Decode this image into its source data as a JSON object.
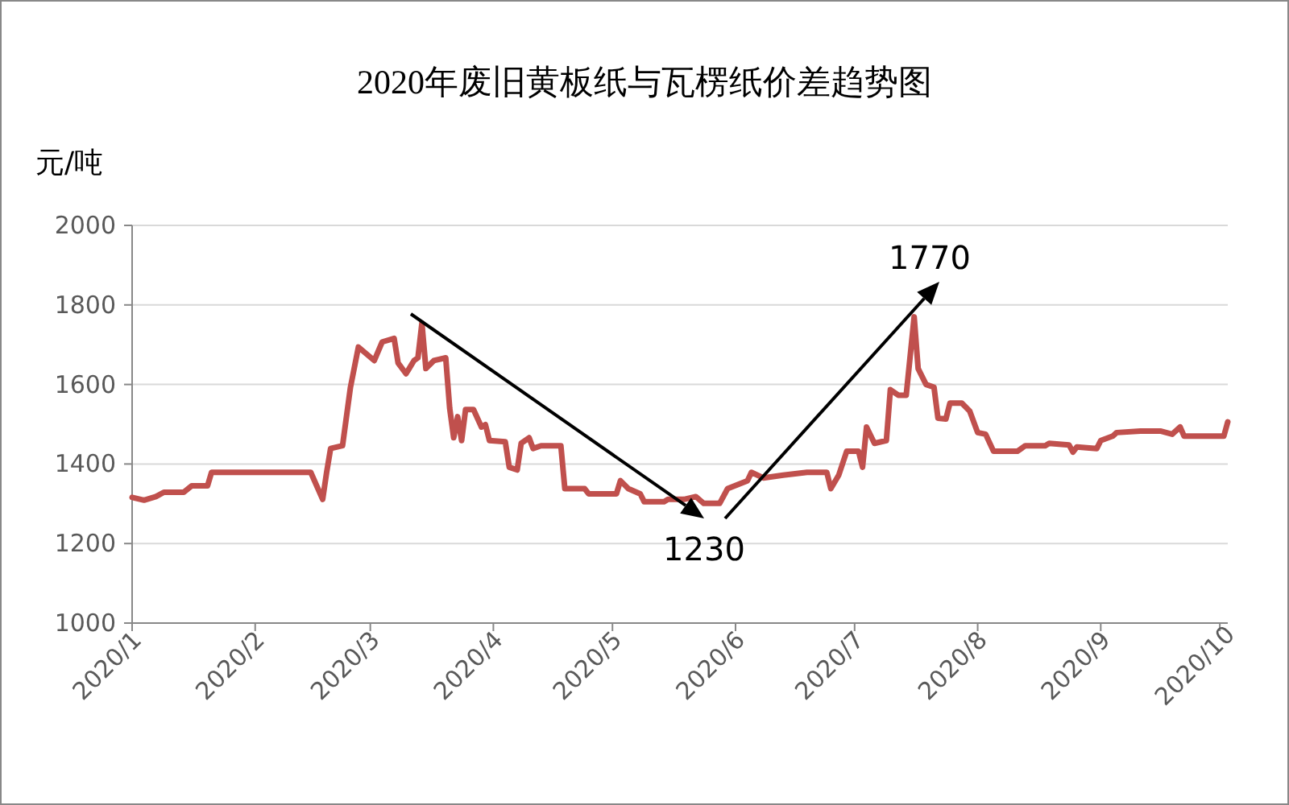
{
  "chart_data": {
    "type": "line",
    "title": "2020年废旧黄板纸与瓦楞纸价差趋势图",
    "ylabel": "元/吨",
    "x": [
      "2020-01-01",
      "2020-01-04",
      "2020-01-07",
      "2020-01-09",
      "2020-01-14",
      "2020-01-16",
      "2020-01-20",
      "2020-01-21",
      "2020-02-15",
      "2020-02-18",
      "2020-02-19",
      "2020-02-20",
      "2020-02-23",
      "2020-02-25",
      "2020-02-27",
      "2020-03-02",
      "2020-03-04",
      "2020-03-07",
      "2020-03-08",
      "2020-03-10",
      "2020-03-12",
      "2020-03-13",
      "2020-03-14",
      "2020-03-15",
      "2020-03-17",
      "2020-03-20",
      "2020-03-21",
      "2020-03-22",
      "2020-03-23",
      "2020-03-24",
      "2020-03-25",
      "2020-03-27",
      "2020-03-29",
      "2020-03-30",
      "2020-03-31",
      "2020-04-04",
      "2020-04-05",
      "2020-04-07",
      "2020-04-08",
      "2020-04-10",
      "2020-04-11",
      "2020-04-13",
      "2020-04-18",
      "2020-04-19",
      "2020-04-24",
      "2020-04-25",
      "2020-05-02",
      "2020-05-03",
      "2020-05-05",
      "2020-05-08",
      "2020-05-09",
      "2020-05-14",
      "2020-05-15",
      "2020-05-19",
      "2020-05-22",
      "2020-05-24",
      "2020-05-28",
      "2020-05-30",
      "2020-06-04",
      "2020-06-05",
      "2020-06-08",
      "2020-06-13",
      "2020-06-19",
      "2020-06-24",
      "2020-06-25",
      "2020-06-27",
      "2020-06-29",
      "2020-07-02",
      "2020-07-03",
      "2020-07-04",
      "2020-07-06",
      "2020-07-09",
      "2020-07-10",
      "2020-07-12",
      "2020-07-14",
      "2020-07-16",
      "2020-07-17",
      "2020-07-19",
      "2020-07-21",
      "2020-07-22",
      "2020-07-24",
      "2020-07-25",
      "2020-07-28",
      "2020-07-30",
      "2020-08-01",
      "2020-08-03",
      "2020-08-05",
      "2020-08-11",
      "2020-08-13",
      "2020-08-18",
      "2020-08-19",
      "2020-08-24",
      "2020-08-25",
      "2020-08-26",
      "2020-08-31",
      "2020-09-01",
      "2020-09-04",
      "2020-09-05",
      "2020-09-11",
      "2020-09-16",
      "2020-09-19",
      "2020-09-21",
      "2020-09-22",
      "2020-10-02",
      "2020-10-03"
    ],
    "series": [
      {
        "color": "#c0504d",
        "values": [
          1316,
          1309,
          1318,
          1329,
          1329,
          1345,
          1345,
          1379,
          1379,
          1311,
          1379,
          1439,
          1446,
          1593,
          1694,
          1660,
          1707,
          1716,
          1654,
          1627,
          1660,
          1667,
          1754,
          1640,
          1660,
          1667,
          1540,
          1466,
          1519,
          1459,
          1537,
          1537,
          1493,
          1499,
          1459,
          1456,
          1392,
          1385,
          1452,
          1466,
          1439,
          1446,
          1446,
          1338,
          1338,
          1325,
          1325,
          1358,
          1338,
          1325,
          1305,
          1305,
          1311,
          1311,
          1318,
          1301,
          1301,
          1338,
          1358,
          1379,
          1365,
          1372,
          1379,
          1379,
          1338,
          1372,
          1432,
          1432,
          1392,
          1493,
          1452,
          1459,
          1587,
          1573,
          1573,
          1770,
          1640,
          1600,
          1593,
          1515,
          1513,
          1553,
          1553,
          1533,
          1479,
          1475,
          1432,
          1432,
          1446,
          1446,
          1452,
          1448,
          1430,
          1443,
          1439,
          1459,
          1470,
          1479,
          1483,
          1483,
          1475,
          1493,
          1470,
          1470,
          1506
        ]
      }
    ],
    "xlim": [
      "2020-01-01",
      "2020-10-03"
    ],
    "xticks": [
      {
        "value": "2020-01-01",
        "label": "2020/1"
      },
      {
        "value": "2020-02-01",
        "label": "2020/2"
      },
      {
        "value": "2020-03-01",
        "label": "2020/3"
      },
      {
        "value": "2020-04-01",
        "label": "2020/4"
      },
      {
        "value": "2020-05-01",
        "label": "2020/5"
      },
      {
        "value": "2020-06-01",
        "label": "2020/6"
      },
      {
        "value": "2020-07-01",
        "label": "2020/7"
      },
      {
        "value": "2020-08-01",
        "label": "2020/8"
      },
      {
        "value": "2020-09-01",
        "label": "2020/9"
      },
      {
        "value": "2020-10-01",
        "label": "2020/10"
      }
    ],
    "ylim": [
      1000,
      2000
    ],
    "yticks": [
      1000,
      1200,
      1400,
      1600,
      1800,
      2000
    ],
    "grid": "y",
    "marker": "none",
    "line_style": "solid",
    "annotations": [
      "1230",
      "1770"
    ]
  }
}
